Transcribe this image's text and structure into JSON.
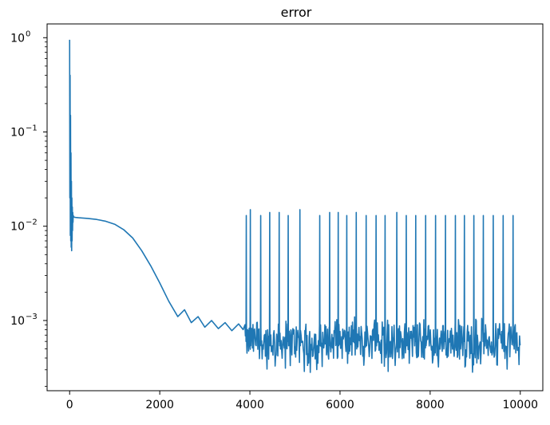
{
  "chart_data": {
    "type": "line",
    "title": "error",
    "xlabel": "",
    "ylabel": "",
    "yscale": "log",
    "xlim": [
      -500,
      10500
    ],
    "ylim": [
      0.00018,
      1.4
    ],
    "grid": false,
    "x_ticks": [
      0,
      2000,
      4000,
      6000,
      8000,
      10000
    ],
    "x_tick_labels": [
      "0",
      "2000",
      "4000",
      "6000",
      "8000",
      "10000"
    ],
    "y_ticks": [
      0.001,
      0.01,
      0.1,
      1
    ],
    "y_tick_labels": [
      {
        "base": "10",
        "exp": "−3"
      },
      {
        "base": "10",
        "exp": "−2"
      },
      {
        "base": "10",
        "exp": "−1"
      },
      {
        "base": "10",
        "exp": "0"
      }
    ],
    "series": [
      {
        "color": "#1f77b4",
        "x": [
          0,
          5,
          10,
          15,
          20,
          25,
          30,
          35,
          40,
          45,
          50,
          55,
          60,
          65,
          70,
          75,
          80,
          90,
          100,
          130,
          200,
          400,
          600,
          800,
          1000,
          1200,
          1400,
          1600,
          1800,
          2000,
          2200,
          2400,
          2550,
          2700,
          2850,
          3000,
          3150,
          3300,
          3450,
          3600,
          3750,
          3850,
          3890
        ],
        "y": [
          0.95,
          0.02,
          0.4,
          0.008,
          0.15,
          0.007,
          0.06,
          0.006,
          0.03,
          0.0055,
          0.02,
          0.007,
          0.016,
          0.009,
          0.014,
          0.011,
          0.013,
          0.0125,
          0.0125,
          0.0124,
          0.0123,
          0.0121,
          0.0118,
          0.0113,
          0.0105,
          0.0092,
          0.0075,
          0.0055,
          0.0038,
          0.0025,
          0.0016,
          0.0011,
          0.0013,
          0.00095,
          0.0011,
          0.00085,
          0.001,
          0.00082,
          0.00095,
          0.00078,
          0.00092,
          0.0008,
          0.0009
        ]
      }
    ],
    "noise_floor": {
      "x_range": [
        3900,
        10000
      ],
      "typical": 0.0006,
      "low": 0.00028,
      "high": 0.0009
    },
    "spikes": [
      {
        "x": 3920,
        "y": 0.013
      },
      {
        "x": 4010,
        "y": 0.015
      },
      {
        "x": 4240,
        "y": 0.013
      },
      {
        "x": 4440,
        "y": 0.014
      },
      {
        "x": 4650,
        "y": 0.014
      },
      {
        "x": 4850,
        "y": 0.013
      },
      {
        "x": 5110,
        "y": 0.015
      },
      {
        "x": 5550,
        "y": 0.013
      },
      {
        "x": 5770,
        "y": 0.014
      },
      {
        "x": 5960,
        "y": 0.014
      },
      {
        "x": 6150,
        "y": 0.013
      },
      {
        "x": 6360,
        "y": 0.014
      },
      {
        "x": 6580,
        "y": 0.013
      },
      {
        "x": 6800,
        "y": 0.013
      },
      {
        "x": 7000,
        "y": 0.013
      },
      {
        "x": 7260,
        "y": 0.014
      },
      {
        "x": 7470,
        "y": 0.013
      },
      {
        "x": 7680,
        "y": 0.013
      },
      {
        "x": 7900,
        "y": 0.013
      },
      {
        "x": 8120,
        "y": 0.013
      },
      {
        "x": 8340,
        "y": 0.013
      },
      {
        "x": 8560,
        "y": 0.013
      },
      {
        "x": 8760,
        "y": 0.013
      },
      {
        "x": 8970,
        "y": 0.013
      },
      {
        "x": 9180,
        "y": 0.013
      },
      {
        "x": 9400,
        "y": 0.013
      },
      {
        "x": 9620,
        "y": 0.013
      },
      {
        "x": 9840,
        "y": 0.013
      }
    ]
  }
}
